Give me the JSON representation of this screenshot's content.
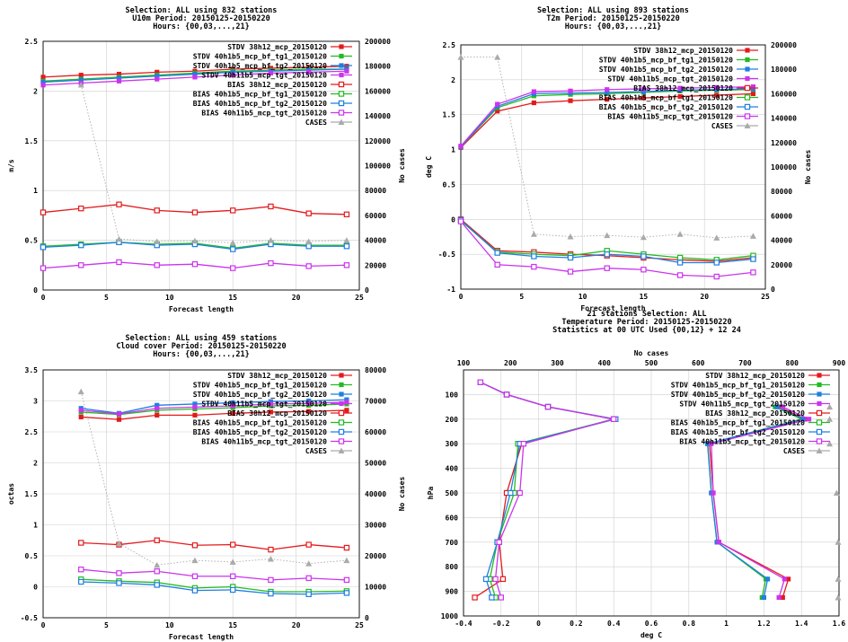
{
  "chart_data": [
    {
      "type": "line",
      "title": [
        "Selection: ALL using   832 stations",
        "U10m   Period: 20150125-20150220",
        "Hours: {00,03,...,21}"
      ],
      "xlabel": "Forecast length",
      "ylabel": "m/s",
      "y2label": "No cases",
      "xlim": [
        0,
        25
      ],
      "ylim": [
        0,
        2.5
      ],
      "y2lim": [
        0,
        200000
      ],
      "xticks": [
        0,
        5,
        10,
        15,
        20,
        25
      ],
      "yticks": [
        0,
        0.5,
        1,
        1.5,
        2,
        2.5
      ],
      "y2ticks": [
        0,
        20000,
        40000,
        60000,
        80000,
        100000,
        120000,
        140000,
        160000,
        180000,
        200000
      ],
      "grid": true,
      "legend_position": "top-right",
      "x": [
        0,
        3,
        6,
        9,
        12,
        15,
        18,
        21,
        24
      ],
      "series": [
        {
          "name": "STDV 38h12_mcp_20150120",
          "color": "#e41a1c",
          "marker": "filled-square",
          "values": [
            2.14,
            2.16,
            2.17,
            2.19,
            2.2,
            2.22,
            2.23,
            2.24,
            2.25
          ]
        },
        {
          "name": "STDV 40h1b5_mcp_bf_tg1_20150120",
          "color": "#22bb22",
          "marker": "filled-square",
          "values": [
            2.1,
            2.12,
            2.14,
            2.16,
            2.18,
            2.2,
            2.21,
            2.22,
            2.22
          ]
        },
        {
          "name": "STDV 40h1b5_mcp_bf_tg2_20150120",
          "color": "#1f7fe0",
          "marker": "filled-square",
          "values": [
            2.09,
            2.11,
            2.13,
            2.15,
            2.17,
            2.19,
            2.2,
            2.21,
            2.22
          ]
        },
        {
          "name": "STDV 40h11b5_mcp_tgt_20150120",
          "color": "#cc33ee",
          "marker": "filled-square",
          "values": [
            2.06,
            2.08,
            2.1,
            2.12,
            2.14,
            2.16,
            2.18,
            2.19,
            2.2
          ]
        },
        {
          "name": "BIAS 38h12_mcp_20150120",
          "color": "#e41a1c",
          "marker": "open-square",
          "values": [
            0.78,
            0.82,
            0.86,
            0.8,
            0.78,
            0.8,
            0.84,
            0.77,
            0.76
          ]
        },
        {
          "name": "BIAS 40h1b5_mcp_bf_tg1_20150120",
          "color": "#22bb22",
          "marker": "open-square",
          "values": [
            0.44,
            0.46,
            0.48,
            0.46,
            0.47,
            0.42,
            0.47,
            0.45,
            0.45
          ]
        },
        {
          "name": "BIAS 40h1b5_mcp_bf_tg2_20150120",
          "color": "#1f7fe0",
          "marker": "open-square",
          "values": [
            0.43,
            0.45,
            0.48,
            0.45,
            0.46,
            0.41,
            0.46,
            0.44,
            0.44
          ]
        },
        {
          "name": "BIAS 40h11b5_mcp_tgt_20150120",
          "color": "#cc33ee",
          "marker": "open-square",
          "values": [
            0.22,
            0.25,
            0.28,
            0.25,
            0.26,
            0.22,
            0.27,
            0.24,
            0.25
          ]
        },
        {
          "name": "CASES",
          "color": "#aaaaaa",
          "marker": "triangle",
          "axis": "y2",
          "dashed": true,
          "values": [
            null,
            165000,
            41000,
            39000,
            39500,
            38000,
            40000,
            39000,
            40000
          ]
        }
      ]
    },
    {
      "type": "line",
      "title": [
        "Selection: ALL using   893 stations",
        "T2m   Period: 20150125-20150220",
        "Hours: {00,03,...,21}"
      ],
      "xlabel": "Forecast length",
      "ylabel": "deg C",
      "y2label": "No cases",
      "xlim": [
        0,
        25
      ],
      "ylim": [
        -1,
        2.5
      ],
      "y2lim": [
        0,
        200000
      ],
      "xticks": [
        0,
        5,
        10,
        15,
        20,
        25
      ],
      "yticks": [
        -1,
        -0.5,
        0,
        0.5,
        1,
        1.5,
        2,
        2.5
      ],
      "y2ticks": [
        0,
        20000,
        40000,
        60000,
        80000,
        100000,
        120000,
        140000,
        160000,
        180000,
        200000
      ],
      "grid": true,
      "legend_position": "top-right",
      "x": [
        0,
        3,
        6,
        9,
        12,
        15,
        18,
        21,
        24
      ],
      "series": [
        {
          "name": "STDV 38h12_mcp_20150120",
          "color": "#e41a1c",
          "marker": "filled-square",
          "values": [
            1.03,
            1.55,
            1.67,
            1.7,
            1.72,
            1.74,
            1.76,
            1.78,
            1.8
          ]
        },
        {
          "name": "STDV 40h1b5_mcp_bf_tg1_20150120",
          "color": "#22bb22",
          "marker": "filled-square",
          "values": [
            1.04,
            1.6,
            1.77,
            1.79,
            1.8,
            1.82,
            1.84,
            1.85,
            1.86
          ]
        },
        {
          "name": "STDV 40h1b5_mcp_bf_tg2_20150120",
          "color": "#1f7fe0",
          "marker": "filled-square",
          "values": [
            1.04,
            1.62,
            1.8,
            1.81,
            1.82,
            1.83,
            1.85,
            1.86,
            1.87
          ]
        },
        {
          "name": "STDV 40h11b5_mcp_tgt_20150120",
          "color": "#cc33ee",
          "marker": "filled-square",
          "values": [
            1.05,
            1.65,
            1.83,
            1.84,
            1.86,
            1.87,
            1.88,
            1.89,
            1.9
          ]
        },
        {
          "name": "BIAS 38h12_mcp_20150120",
          "color": "#e41a1c",
          "marker": "open-square",
          "values": [
            0.0,
            -0.45,
            -0.47,
            -0.5,
            -0.52,
            -0.55,
            -0.58,
            -0.6,
            -0.55
          ]
        },
        {
          "name": "BIAS 40h1b5_mcp_bf_tg1_20150120",
          "color": "#22bb22",
          "marker": "open-square",
          "values": [
            -0.02,
            -0.47,
            -0.5,
            -0.52,
            -0.45,
            -0.5,
            -0.55,
            -0.58,
            -0.52
          ]
        },
        {
          "name": "BIAS 40h1b5_mcp_bf_tg2_20150120",
          "color": "#1f7fe0",
          "marker": "open-square",
          "values": [
            -0.01,
            -0.48,
            -0.53,
            -0.55,
            -0.5,
            -0.53,
            -0.62,
            -0.62,
            -0.57
          ]
        },
        {
          "name": "BIAS 40h11b5_mcp_tgt_20150120",
          "color": "#cc33ee",
          "marker": "open-square",
          "values": [
            -0.03,
            -0.65,
            -0.68,
            -0.75,
            -0.7,
            -0.72,
            -0.8,
            -0.82,
            -0.76
          ]
        },
        {
          "name": "CASES",
          "color": "#aaaaaa",
          "marker": "triangle",
          "axis": "y2",
          "dashed": true,
          "values": [
            190000,
            190000,
            45000,
            43000,
            44000,
            42500,
            45000,
            42000,
            43500
          ]
        }
      ]
    },
    {
      "type": "line",
      "title": [
        "Selection: ALL using   459 stations",
        "Cloud cover   Period: 20150125-20150220",
        "Hours: {00,03,...,21}"
      ],
      "xlabel": "Forecast length",
      "ylabel": "octas",
      "y2label": "No cases",
      "xlim": [
        0,
        25
      ],
      "ylim": [
        -0.5,
        3.5
      ],
      "y2lim": [
        0,
        80000
      ],
      "xticks": [
        0,
        5,
        10,
        15,
        20,
        25
      ],
      "yticks": [
        -0.5,
        0,
        0.5,
        1,
        1.5,
        2,
        2.5,
        3,
        3.5
      ],
      "y2ticks": [
        0,
        10000,
        20000,
        30000,
        40000,
        50000,
        60000,
        70000,
        80000
      ],
      "grid": true,
      "legend_position": "top-right",
      "x": [
        3,
        6,
        9,
        12,
        15,
        18,
        21,
        24
      ],
      "series": [
        {
          "name": "STDV 38h12_mcp_20150120",
          "color": "#e41a1c",
          "marker": "filled-square",
          "values": [
            2.74,
            2.7,
            2.77,
            2.77,
            2.8,
            2.82,
            2.83,
            2.85
          ]
        },
        {
          "name": "STDV 40h1b5_mcp_bf_tg1_20150120",
          "color": "#22bb22",
          "marker": "filled-square",
          "values": [
            2.82,
            2.78,
            2.85,
            2.87,
            2.89,
            2.92,
            2.93,
            2.95
          ]
        },
        {
          "name": "STDV 40h1b5_mcp_bf_tg2_20150120",
          "color": "#1f7fe0",
          "marker": "filled-square",
          "values": [
            2.88,
            2.8,
            2.93,
            2.95,
            2.97,
            2.99,
            3.0,
            3.02
          ]
        },
        {
          "name": "STDV 40h11b5_mcp_tgt_20150120",
          "color": "#cc33ee",
          "marker": "filled-square",
          "values": [
            2.85,
            2.79,
            2.88,
            2.9,
            2.92,
            2.95,
            2.96,
            2.98
          ]
        },
        {
          "name": "BIAS 38h12_mcp_20150120",
          "color": "#e41a1c",
          "marker": "open-square",
          "values": [
            0.71,
            0.68,
            0.75,
            0.67,
            0.68,
            0.6,
            0.68,
            0.63
          ]
        },
        {
          "name": "BIAS 40h1b5_mcp_bf_tg1_20150120",
          "color": "#22bb22",
          "marker": "open-square",
          "values": [
            0.12,
            0.09,
            0.07,
            -0.02,
            0.0,
            -0.08,
            -0.08,
            -0.07
          ]
        },
        {
          "name": "BIAS 40h1b5_mcp_bf_tg2_20150120",
          "color": "#1f7fe0",
          "marker": "open-square",
          "values": [
            0.08,
            0.06,
            0.03,
            -0.06,
            -0.05,
            -0.11,
            -0.12,
            -0.1
          ]
        },
        {
          "name": "BIAS 40h11b5_mcp_tgt_20150120",
          "color": "#cc33ee",
          "marker": "open-square",
          "values": [
            0.28,
            0.22,
            0.25,
            0.17,
            0.17,
            0.11,
            0.14,
            0.11
          ]
        },
        {
          "name": "CASES",
          "color": "#aaaaaa",
          "marker": "triangle",
          "axis": "y2",
          "dashed": true,
          "values": [
            73000,
            24000,
            17000,
            18500,
            18000,
            19000,
            17500,
            18500
          ]
        }
      ]
    },
    {
      "type": "line",
      "title": [
        "21 stations Selection: ALL",
        "Temperature  Period: 20150125-20150220",
        "Statistics at 00 UTC  Used {00,12} + 12 24"
      ],
      "xlabel": "deg C",
      "ylabel": "hPa",
      "x2label": "No cases",
      "xlim": [
        -0.4,
        1.6
      ],
      "ylim": [
        1000,
        0
      ],
      "x2lim": [
        100,
        900
      ],
      "xticks": [
        -0.4,
        -0.2,
        0,
        0.2,
        0.4,
        0.6,
        0.8,
        1,
        1.2,
        1.4,
        1.6
      ],
      "xtick_labels": [
        "-0.4",
        "-0.2",
        "0",
        "0.2",
        "0.4",
        "0.6",
        "0.8",
        "1",
        "1.2",
        "1.4",
        "1.6"
      ],
      "yticks": [
        100,
        200,
        300,
        400,
        500,
        600,
        700,
        800,
        900,
        1000
      ],
      "x2ticks": [
        100,
        200,
        300,
        400,
        500,
        600,
        700,
        800,
        900
      ],
      "grid": true,
      "legend_position": "top-right",
      "y": [
        50,
        100,
        150,
        200,
        300,
        500,
        700,
        850,
        925
      ],
      "series": [
        {
          "name": "STDV 38h12_mcp_20150120",
          "color": "#e41a1c",
          "marker": "filled-square",
          "values": [
            null,
            null,
            1.28,
            1.42,
            0.91,
            0.93,
            0.96,
            1.33,
            1.3
          ]
        },
        {
          "name": "STDV 40h1b5_mcp_bf_tg1_20150120",
          "color": "#22bb22",
          "marker": "filled-square",
          "values": [
            null,
            null,
            1.26,
            1.4,
            0.9,
            0.92,
            0.95,
            1.21,
            1.19
          ]
        },
        {
          "name": "STDV 40h1b5_mcp_bf_tg2_20150120",
          "color": "#1f7fe0",
          "marker": "filled-square",
          "values": [
            null,
            null,
            1.27,
            1.41,
            0.9,
            0.92,
            0.95,
            1.22,
            1.2
          ]
        },
        {
          "name": "STDV 40h11b5_mcp_tgt_20150120",
          "color": "#cc33ee",
          "marker": "filled-square",
          "values": [
            null,
            null,
            1.3,
            1.44,
            0.92,
            0.93,
            0.96,
            1.31,
            1.28
          ]
        },
        {
          "name": "BIAS 38h12_mcp_20150120",
          "color": "#e41a1c",
          "marker": "open-square",
          "values": [
            -0.31,
            -0.17,
            0.05,
            0.4,
            -0.09,
            -0.17,
            -0.21,
            -0.19,
            -0.34
          ]
        },
        {
          "name": "BIAS 40h1b5_mcp_bf_tg1_20150120",
          "color": "#22bb22",
          "marker": "open-square",
          "values": [
            -0.31,
            -0.17,
            0.05,
            0.4,
            -0.11,
            -0.13,
            -0.22,
            -0.26,
            -0.23
          ]
        },
        {
          "name": "BIAS 40h1b5_mcp_bf_tg2_20150120",
          "color": "#1f7fe0",
          "marker": "open-square",
          "values": [
            -0.31,
            -0.17,
            0.05,
            0.41,
            -0.1,
            -0.15,
            -0.22,
            -0.28,
            -0.25
          ]
        },
        {
          "name": "BIAS 40h11b5_mcp_tgt_20150120",
          "color": "#cc33ee",
          "marker": "open-square",
          "values": [
            -0.31,
            -0.17,
            0.05,
            0.4,
            -0.08,
            -0.1,
            -0.21,
            -0.23,
            -0.2
          ]
        },
        {
          "name": "CASES",
          "color": "#aaaaaa",
          "marker": "triangle",
          "axis": "x2",
          "values": [
            null,
            null,
            880,
            880,
            880,
            895,
            900,
            905,
            905
          ]
        }
      ]
    }
  ]
}
